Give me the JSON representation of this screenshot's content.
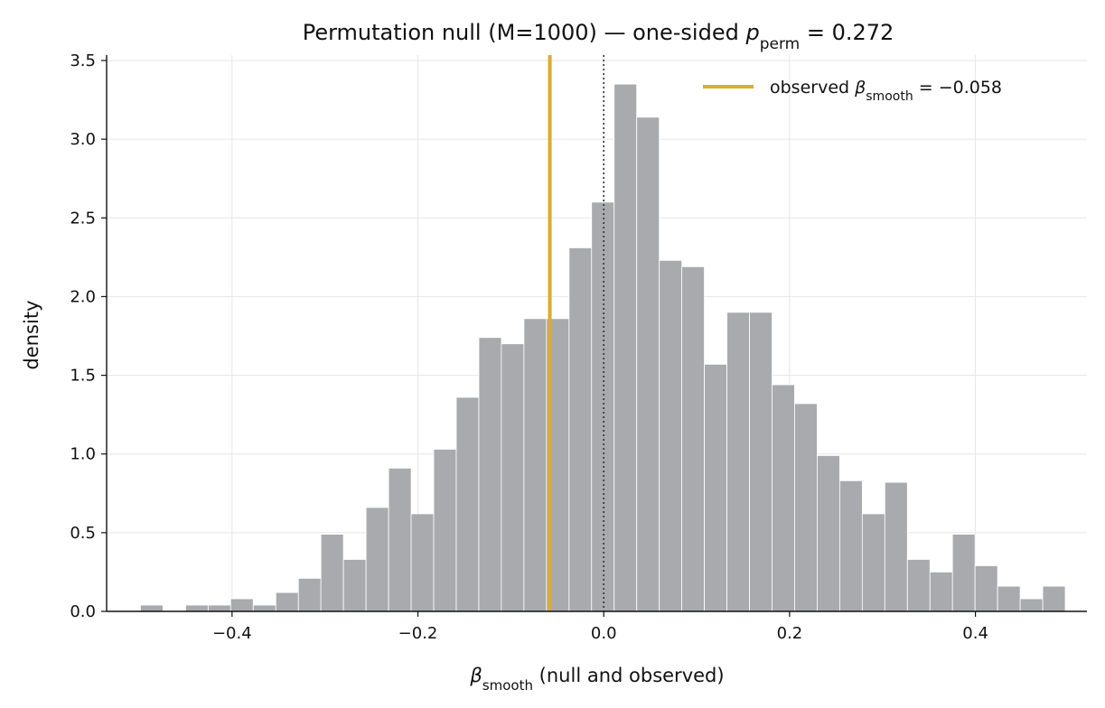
{
  "chart_data": {
    "type": "bar",
    "title_parts": {
      "main": "Permutation null (M=1000) — one-sided ",
      "p_symbol": "p",
      "p_subscript": "perm",
      "p_value": " = 0.272"
    },
    "xlabel_parts": {
      "symbol": "β",
      "subscript": "smooth",
      "rest": "  (null and observed)"
    },
    "ylabel": "density",
    "xlim": [
      -0.535,
      0.52
    ],
    "ylim": [
      0,
      3.5
    ],
    "x_ticks": [
      {
        "value": -0.4,
        "label": "−0.4"
      },
      {
        "value": -0.2,
        "label": "−0.2"
      },
      {
        "value": 0.0,
        "label": "0.0"
      },
      {
        "value": 0.2,
        "label": "0.2"
      },
      {
        "value": 0.4,
        "label": "0.4"
      }
    ],
    "y_ticks": [
      {
        "value": 0.0,
        "label": "0.0"
      },
      {
        "value": 0.5,
        "label": "0.5"
      },
      {
        "value": 1.0,
        "label": "1.0"
      },
      {
        "value": 1.5,
        "label": "1.5"
      },
      {
        "value": 2.0,
        "label": "2.0"
      },
      {
        "value": 2.5,
        "label": "2.5"
      },
      {
        "value": 3.0,
        "label": "3.0"
      },
      {
        "value": 3.5,
        "label": "3.5"
      }
    ],
    "grid": true,
    "bin_width": 0.02427,
    "bins": [
      {
        "x0": -0.4986,
        "density": 0.04
      },
      {
        "x0": -0.4743,
        "density": 0.0
      },
      {
        "x0": -0.45,
        "density": 0.04
      },
      {
        "x0": -0.4257,
        "density": 0.04
      },
      {
        "x0": -0.4015,
        "density": 0.08
      },
      {
        "x0": -0.3772,
        "density": 0.04
      },
      {
        "x0": -0.3529,
        "density": 0.12
      },
      {
        "x0": -0.3286,
        "density": 0.21
      },
      {
        "x0": -0.3044,
        "density": 0.49
      },
      {
        "x0": -0.2801,
        "density": 0.33
      },
      {
        "x0": -0.2558,
        "density": 0.66
      },
      {
        "x0": -0.2315,
        "density": 0.91
      },
      {
        "x0": -0.2073,
        "density": 0.62
      },
      {
        "x0": -0.183,
        "density": 1.03
      },
      {
        "x0": -0.1587,
        "density": 1.36
      },
      {
        "x0": -0.1344,
        "density": 1.74
      },
      {
        "x0": -0.1102,
        "density": 1.7
      },
      {
        "x0": -0.0859,
        "density": 1.86
      },
      {
        "x0": -0.0616,
        "density": 1.86
      },
      {
        "x0": -0.0373,
        "density": 2.31
      },
      {
        "x0": -0.0131,
        "density": 2.6
      },
      {
        "x0": 0.0112,
        "density": 3.35
      },
      {
        "x0": 0.0355,
        "density": 3.14
      },
      {
        "x0": 0.0598,
        "density": 2.23
      },
      {
        "x0": 0.084,
        "density": 2.19
      },
      {
        "x0": 0.1083,
        "density": 1.57
      },
      {
        "x0": 0.1326,
        "density": 1.9
      },
      {
        "x0": 0.1569,
        "density": 1.9
      },
      {
        "x0": 0.1811,
        "density": 1.44
      },
      {
        "x0": 0.2054,
        "density": 1.32
      },
      {
        "x0": 0.2297,
        "density": 0.99
      },
      {
        "x0": 0.254,
        "density": 0.83
      },
      {
        "x0": 0.2782,
        "density": 0.62
      },
      {
        "x0": 0.3025,
        "density": 0.82
      },
      {
        "x0": 0.3268,
        "density": 0.33
      },
      {
        "x0": 0.3511,
        "density": 0.25
      },
      {
        "x0": 0.3753,
        "density": 0.49
      },
      {
        "x0": 0.3996,
        "density": 0.29
      },
      {
        "x0": 0.4239,
        "density": 0.16
      },
      {
        "x0": 0.4482,
        "density": 0.08
      },
      {
        "x0": 0.4724,
        "density": 0.16
      }
    ],
    "observed_line": {
      "x": -0.058,
      "color": "#DDAA33"
    },
    "zero_line": {
      "x": 0.0,
      "style": "dotted"
    },
    "bar_color": "#A9AAAD",
    "legend": {
      "placement": "top-right",
      "prefix": "observed ",
      "symbol": "β",
      "subscript": "smooth",
      "value": " = −0.058"
    }
  }
}
